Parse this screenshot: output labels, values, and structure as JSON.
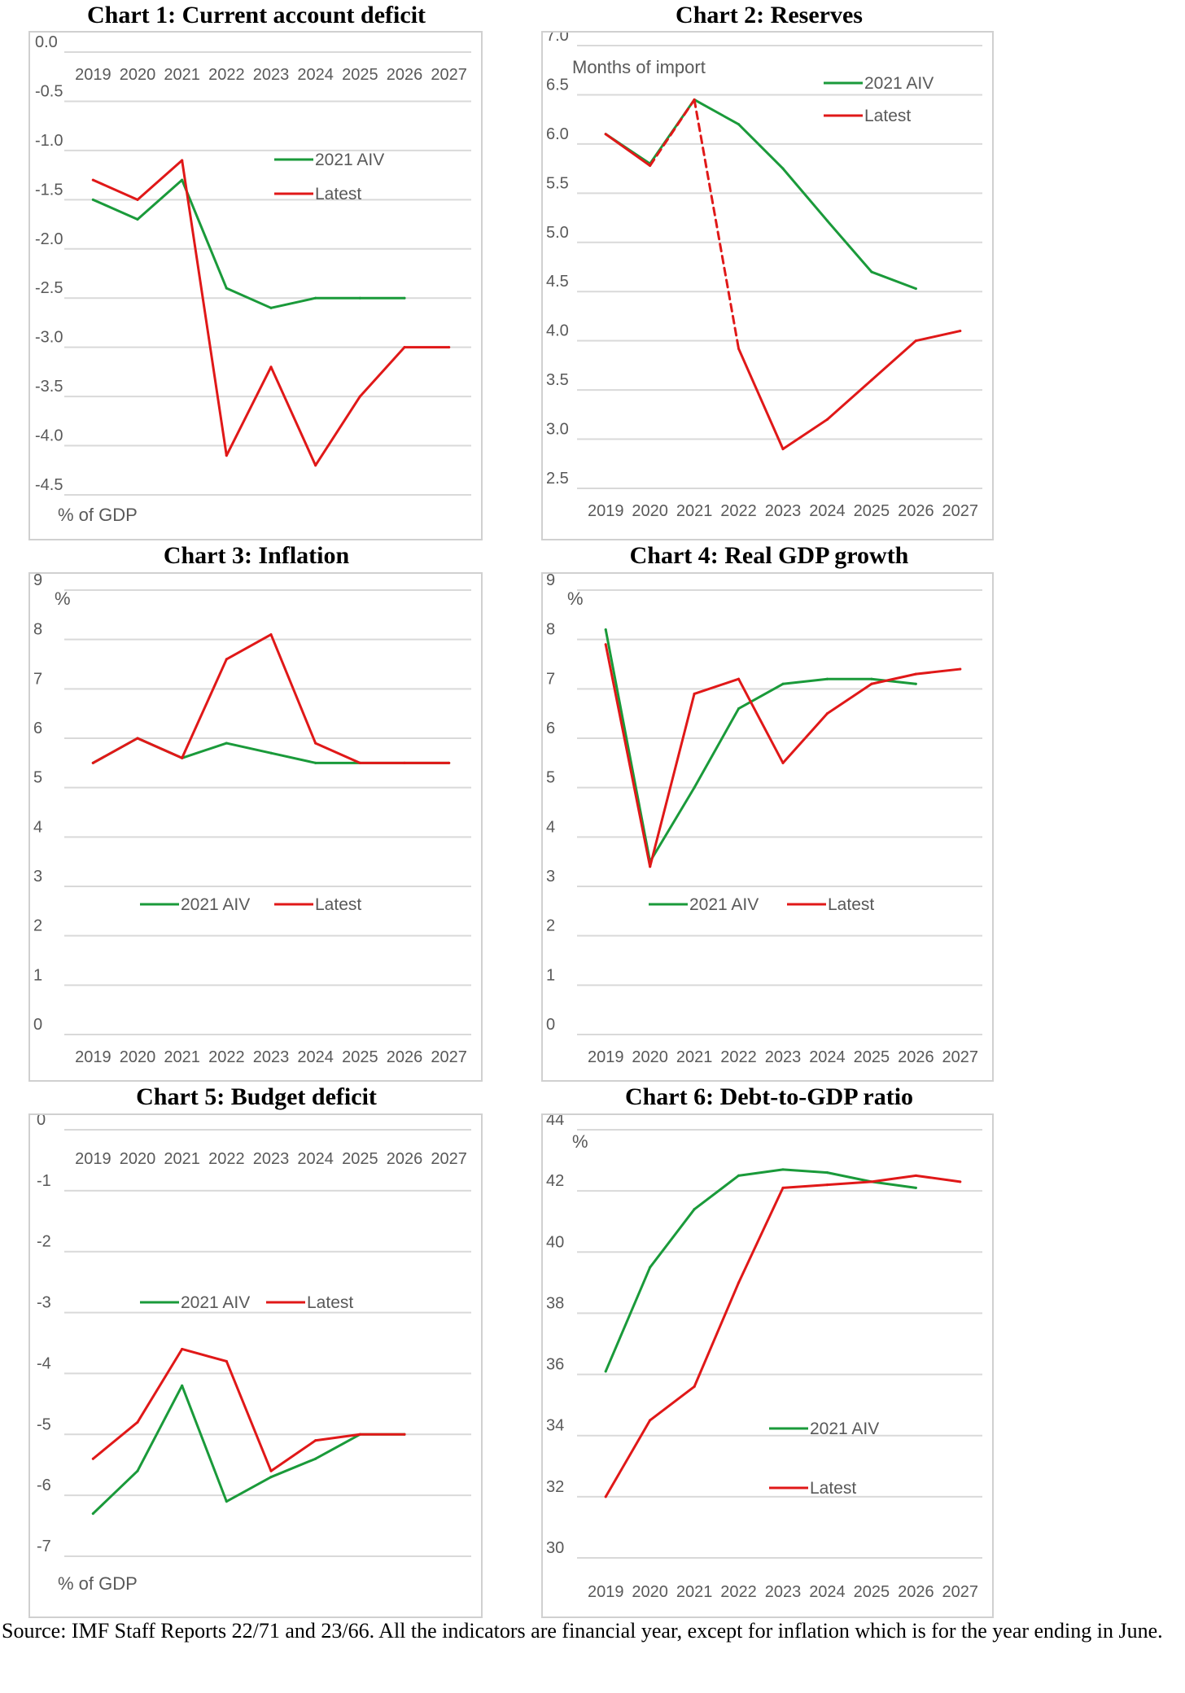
{
  "chart_data": [
    {
      "id": "c1",
      "type": "line",
      "title": "Chart 1: Current account deficit",
      "unit_label": "% of GDP",
      "x": [
        "2019",
        "2020",
        "2021",
        "2022",
        "2023",
        "2024",
        "2025",
        "2026",
        "2027"
      ],
      "ylim": [
        -4.5,
        0
      ],
      "yticks": [
        "0.0",
        "-0.5",
        "-1.0",
        "-1.5",
        "-2.0",
        "-2.5",
        "-3.0",
        "-3.5",
        "-4.0",
        "-4.5"
      ],
      "xaxis_position": "top",
      "grid": true,
      "legend": "inside-upper-right",
      "series": [
        {
          "name": "2021 AIV",
          "color": "#1a9a3a",
          "values": [
            -1.5,
            -1.7,
            -1.3,
            -2.4,
            -2.6,
            -2.5,
            -2.5,
            -2.5,
            null
          ]
        },
        {
          "name": "Latest",
          "color": "#e01818",
          "values": [
            -1.3,
            -1.5,
            -1.1,
            -4.1,
            -3.2,
            -4.2,
            -3.5,
            -3.0,
            -3.0
          ]
        }
      ]
    },
    {
      "id": "c2",
      "type": "line",
      "title": "Chart 2: Reserves",
      "unit_label": "Months of import",
      "x": [
        "2019",
        "2020",
        "2021",
        "2022",
        "2023",
        "2024",
        "2025",
        "2026",
        "2027"
      ],
      "ylim": [
        2.5,
        7.0
      ],
      "yticks": [
        "7.0",
        "6.5",
        "6.0",
        "5.5",
        "5.0",
        "4.5",
        "4.0",
        "3.5",
        "3.0",
        "2.5"
      ],
      "xaxis_position": "bottom",
      "grid": true,
      "legend": "top-right",
      "series": [
        {
          "name": "2021 AIV",
          "color": "#1a9a3a",
          "values": [
            6.1,
            5.8,
            6.45,
            6.2,
            5.75,
            5.22,
            4.7,
            4.53,
            null
          ]
        },
        {
          "name": "Latest",
          "color": "#e01818",
          "values": [
            6.1,
            5.78,
            6.45,
            3.92,
            2.9,
            3.2,
            3.6,
            4.0,
            4.1
          ],
          "dashed_segments": [
            [
              1,
              2
            ],
            [
              2,
              3
            ]
          ]
        }
      ]
    },
    {
      "id": "c3",
      "type": "line",
      "title": "Chart 3: Inflation",
      "unit_label": "%",
      "x": [
        "2019",
        "2020",
        "2021",
        "2022",
        "2023",
        "2024",
        "2025",
        "2026",
        "2027"
      ],
      "ylim": [
        0,
        9
      ],
      "yticks": [
        "9",
        "8",
        "7",
        "6",
        "5",
        "4",
        "3",
        "2",
        "1",
        "0"
      ],
      "xaxis_position": "bottom",
      "grid": true,
      "legend": "middle",
      "series": [
        {
          "name": "2021 AIV",
          "color": "#1a9a3a",
          "values": [
            5.5,
            6.0,
            5.6,
            5.9,
            5.7,
            5.5,
            5.5,
            5.5,
            5.5
          ]
        },
        {
          "name": "Latest",
          "color": "#e01818",
          "values": [
            5.5,
            6.0,
            5.6,
            7.6,
            8.1,
            5.9,
            5.5,
            5.5,
            5.5
          ]
        }
      ]
    },
    {
      "id": "c4",
      "type": "line",
      "title": "Chart 4: Real GDP growth",
      "unit_label": "%",
      "x": [
        "2019",
        "2020",
        "2021",
        "2022",
        "2023",
        "2024",
        "2025",
        "2026",
        "2027"
      ],
      "ylim": [
        0,
        9
      ],
      "yticks": [
        "9",
        "8",
        "7",
        "6",
        "5",
        "4",
        "3",
        "2",
        "1",
        "0"
      ],
      "xaxis_position": "bottom",
      "grid": true,
      "legend": "middle",
      "series": [
        {
          "name": "2021 AIV",
          "color": "#1a9a3a",
          "values": [
            8.2,
            3.5,
            5.0,
            6.6,
            7.1,
            7.2,
            7.2,
            7.1,
            null
          ]
        },
        {
          "name": "Latest",
          "color": "#e01818",
          "values": [
            7.9,
            3.4,
            6.9,
            7.2,
            5.5,
            6.5,
            7.1,
            7.3,
            7.4
          ]
        }
      ]
    },
    {
      "id": "c5",
      "type": "line",
      "title": "Chart 5: Budget deficit",
      "unit_label": "% of GDP",
      "x": [
        "2019",
        "2020",
        "2021",
        "2022",
        "2023",
        "2024",
        "2025",
        "2026",
        "2027"
      ],
      "ylim": [
        -7,
        0
      ],
      "yticks": [
        "0",
        "-1",
        "-2",
        "-3",
        "-4",
        "-5",
        "-6",
        "-7"
      ],
      "xaxis_position": "top",
      "grid": true,
      "legend": "middle",
      "series": [
        {
          "name": "2021 AIV",
          "color": "#1a9a3a",
          "values": [
            -6.3,
            -5.6,
            -4.2,
            -6.1,
            -5.7,
            -5.4,
            -5.0,
            -5.0,
            null
          ]
        },
        {
          "name": "Latest",
          "color": "#e01818",
          "values": [
            -5.4,
            -4.8,
            -3.6,
            -3.8,
            -5.6,
            -5.1,
            -5.0,
            -5.0,
            null
          ]
        }
      ]
    },
    {
      "id": "c6",
      "type": "line",
      "title": "Chart 6: Debt-to-GDP ratio",
      "unit_label": "%",
      "x": [
        "2019",
        "2020",
        "2021",
        "2022",
        "2023",
        "2024",
        "2025",
        "2026",
        "2027"
      ],
      "ylim": [
        30,
        44
      ],
      "yticks": [
        "44",
        "42",
        "40",
        "38",
        "36",
        "34",
        "32",
        "30"
      ],
      "xaxis_position": "bottom",
      "grid": true,
      "legend": "lower-middle",
      "series": [
        {
          "name": "2021 AIV",
          "color": "#1a9a3a",
          "values": [
            36.1,
            39.5,
            41.4,
            42.5,
            42.7,
            42.6,
            42.3,
            42.1,
            null
          ]
        },
        {
          "name": "Latest",
          "color": "#e01818",
          "values": [
            32.0,
            34.5,
            35.6,
            39.0,
            42.1,
            42.2,
            42.3,
            42.5,
            42.3
          ]
        }
      ]
    }
  ],
  "source_note": "Source: IMF Staff Reports 22/71 and 23/66. All the indicators are financial year, except for inflation which is for the year ending in June."
}
